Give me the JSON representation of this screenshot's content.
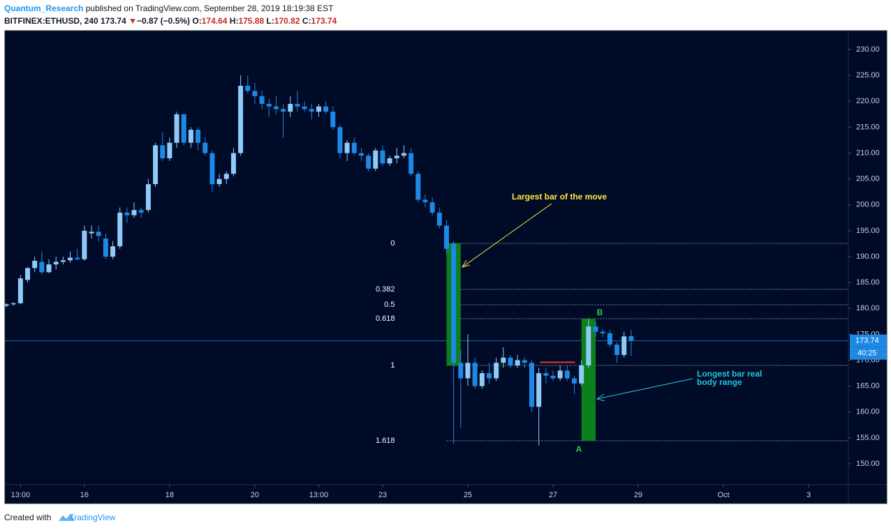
{
  "header": {
    "author": "Quantum_Research",
    "published": "published on TradingView.com, September 28, 2019 18:19:38 EST",
    "symbol": "BITFINEX:ETHUSD, 240",
    "price": "173.74",
    "change_icon": "▼",
    "change": "−0.87 (−0.5%)",
    "o_label": "O:",
    "o": "174.64",
    "h_label": "H:",
    "h": "175.88",
    "l_label": "L:",
    "l": "170.82",
    "c_label": "C:",
    "c": "173.74"
  },
  "footer": {
    "created": "Created with",
    "brand": "TradingView"
  },
  "chart_data": {
    "type": "candlestick",
    "up_color": "#90caf9",
    "down_color": "#1e88e5",
    "xlim": [
      -0.2,
      118.6
    ],
    "ylim": [
      145.96,
      233.64
    ],
    "xticks": [
      {
        "value": 2,
        "label": "13:00"
      },
      {
        "value": 11,
        "label": "16"
      },
      {
        "value": 23,
        "label": "18"
      },
      {
        "value": 35,
        "label": "20"
      },
      {
        "value": 44,
        "label": "13:00"
      },
      {
        "value": 53,
        "label": "23"
      },
      {
        "value": 65,
        "label": "25"
      },
      {
        "value": 77,
        "label": "27"
      },
      {
        "value": 89,
        "label": "29"
      },
      {
        "value": 101,
        "label": "Oct"
      },
      {
        "value": 113,
        "label": "3"
      }
    ],
    "yticks": [
      {
        "value": 150,
        "label": "150.00"
      },
      {
        "value": 155,
        "label": "155.00"
      },
      {
        "value": 160,
        "label": "160.00"
      },
      {
        "value": 165,
        "label": "165.00"
      },
      {
        "value": 170,
        "label": "170.00"
      },
      {
        "value": 175,
        "label": "175.00"
      },
      {
        "value": 180,
        "label": "180.00"
      },
      {
        "value": 185,
        "label": "185.00"
      },
      {
        "value": 190,
        "label": "190.00"
      },
      {
        "value": 195,
        "label": "195.00"
      },
      {
        "value": 200,
        "label": "200.00"
      },
      {
        "value": 205,
        "label": "205.00"
      },
      {
        "value": 210,
        "label": "210.00"
      },
      {
        "value": 215,
        "label": "215.00"
      },
      {
        "value": 220,
        "label": "220.00"
      },
      {
        "value": 225,
        "label": "225.00"
      },
      {
        "value": 230,
        "label": "230.00"
      }
    ],
    "candles": [
      [
        180.5,
        181,
        180.2,
        180.8
      ],
      [
        180.8,
        181.2,
        180.5,
        181
      ],
      [
        181,
        186.5,
        180.8,
        185.8
      ],
      [
        185.5,
        188,
        185,
        187.8
      ],
      [
        187.8,
        190,
        187,
        189.2
      ],
      [
        189,
        191,
        186.5,
        187
      ],
      [
        187,
        189.5,
        186.8,
        188.5
      ],
      [
        188.5,
        190,
        187.5,
        189
      ],
      [
        189,
        190,
        188.5,
        189.3
      ],
      [
        189.3,
        191,
        188.8,
        189.8
      ],
      [
        189.8,
        191.5,
        189.3,
        189.5
      ],
      [
        189.5,
        196,
        189.2,
        195
      ],
      [
        194.5,
        196,
        193.5,
        194.8
      ],
      [
        194.8,
        196,
        193,
        194
      ],
      [
        193.5,
        194.5,
        189.5,
        190
      ],
      [
        190,
        193,
        189.5,
        192
      ],
      [
        192,
        199.5,
        191.5,
        198.5
      ],
      [
        198.5,
        199.5,
        196.5,
        198
      ],
      [
        198,
        200.5,
        197.5,
        199
      ],
      [
        199,
        199.5,
        197.5,
        198.5
      ],
      [
        199,
        205,
        198.5,
        204
      ],
      [
        204,
        212,
        203.5,
        211.5
      ],
      [
        211.5,
        214,
        208.5,
        209
      ],
      [
        209,
        213,
        208.5,
        212
      ],
      [
        212,
        218,
        211,
        217.5
      ],
      [
        217.5,
        217.5,
        211.5,
        212
      ],
      [
        212,
        215,
        211,
        214.5
      ],
      [
        214.5,
        215,
        210.5,
        212
      ],
      [
        212,
        213,
        209.5,
        210
      ],
      [
        210,
        210.5,
        202.5,
        204
      ],
      [
        204,
        206,
        203.5,
        205
      ],
      [
        205,
        206.5,
        204,
        206
      ],
      [
        206,
        211,
        205.5,
        210
      ],
      [
        210,
        225,
        209.5,
        223
      ],
      [
        223,
        225,
        221.5,
        222
      ],
      [
        222,
        223.5,
        219.5,
        221
      ],
      [
        221,
        222,
        218.5,
        219.5
      ],
      [
        219.5,
        220.5,
        217,
        219
      ],
      [
        219,
        221,
        217.5,
        218.5
      ],
      [
        218.5,
        219.5,
        213,
        218
      ],
      [
        218,
        221,
        217,
        219.5
      ],
      [
        219.5,
        222,
        218,
        219
      ],
      [
        219,
        220,
        218,
        218.5
      ],
      [
        218.5,
        219.5,
        216.5,
        218
      ],
      [
        218,
        219.5,
        217,
        219
      ],
      [
        219,
        220,
        217.5,
        218
      ],
      [
        218,
        219,
        214.5,
        215
      ],
      [
        215,
        215.5,
        209,
        210
      ],
      [
        210,
        212.5,
        208.5,
        212
      ],
      [
        212,
        213,
        209.5,
        210
      ],
      [
        210,
        211,
        208.5,
        209.5
      ],
      [
        209.5,
        210,
        206.5,
        207
      ],
      [
        207,
        211,
        206.5,
        210.5
      ],
      [
        210.5,
        211.5,
        207.5,
        208
      ],
      [
        208,
        209.5,
        207.5,
        209
      ],
      [
        209,
        211,
        208,
        209.5
      ],
      [
        209.5,
        211.5,
        209,
        210
      ],
      [
        210,
        211,
        205.5,
        206
      ],
      [
        206,
        206.5,
        200.5,
        201
      ],
      [
        201,
        202,
        199.5,
        200.5
      ],
      [
        200.5,
        201.5,
        198,
        198.5
      ],
      [
        198.5,
        199.5,
        195.5,
        196
      ],
      [
        196,
        197,
        190.5,
        191.5
      ],
      [
        192.5,
        193,
        153.8,
        169.5
      ],
      [
        169.5,
        172,
        157,
        166.5
      ],
      [
        166.5,
        175,
        165,
        169.5
      ],
      [
        169.5,
        170.5,
        164.5,
        165
      ],
      [
        165,
        168,
        164.5,
        167.5
      ],
      [
        167.5,
        169.5,
        165.5,
        166.5
      ],
      [
        166.5,
        170.5,
        166,
        169.5
      ],
      [
        169.5,
        172.5,
        168.5,
        170.5
      ],
      [
        170.5,
        171,
        168.5,
        169
      ],
      [
        169,
        171,
        168.5,
        170
      ],
      [
        170,
        170.5,
        168.5,
        169.5
      ],
      [
        169.5,
        170,
        160,
        161
      ],
      [
        161,
        168.5,
        153.5,
        167.5
      ],
      [
        167.5,
        168.5,
        165.5,
        167
      ],
      [
        167,
        168,
        166,
        166.5
      ],
      [
        166.5,
        169,
        166,
        168
      ],
      [
        168,
        169,
        166,
        166.5
      ],
      [
        166.5,
        167,
        163.5,
        165.5
      ],
      [
        165.5,
        170,
        165,
        169
      ],
      [
        169,
        178,
        168.5,
        176.5
      ],
      [
        176.5,
        177.5,
        174.5,
        175.5
      ],
      [
        175.5,
        176,
        174.5,
        175.2
      ],
      [
        175.2,
        175.8,
        172.5,
        173
      ],
      [
        173,
        173.5,
        169.5,
        171
      ],
      [
        171,
        175.5,
        170.5,
        174.6
      ],
      [
        174.64,
        175.88,
        170.82,
        173.74
      ]
    ],
    "fib_levels": [
      {
        "label": "0",
        "price": 192.56
      },
      {
        "label": "0.382",
        "price": 183.67
      },
      {
        "label": "0.5",
        "price": 180.71
      },
      {
        "label": "0.618",
        "price": 178.01
      },
      {
        "label": "1",
        "price": 168.99
      },
      {
        "label": "1.618",
        "price": 154.44
      }
    ],
    "fib_start": 62,
    "highlight_boxes": [
      {
        "x": [
          62,
          64
        ],
        "price": [
          168.99,
          192.56
        ],
        "color": "#0d7f1c"
      },
      {
        "x": [
          81,
          83
        ],
        "price": [
          154.44,
          178.01
        ],
        "color": "#0d7f1c"
      }
    ],
    "level_line": {
      "x": [
        75.2,
        80.1
      ],
      "price": 169.6,
      "color": "#e53935"
    },
    "last_price": 173.74,
    "countdown": "40:25",
    "annotations": {
      "largest": "Largest bar of the move",
      "longest": [
        "Longest bar real",
        "body range"
      ],
      "a": "A",
      "b": "B"
    }
  }
}
